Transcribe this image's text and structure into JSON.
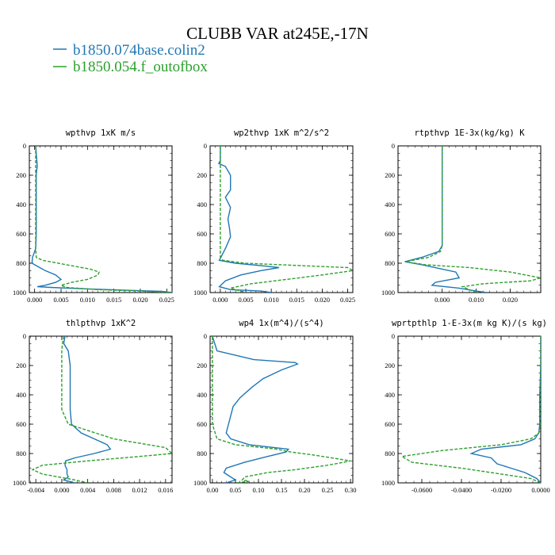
{
  "title": "CLUBB VAR at245E,-17N",
  "legend": [
    {
      "label": "b1850.074base.colin2",
      "color": "#1f77b4",
      "dash": "solid"
    },
    {
      "label": "b1850.054.f_outofbox",
      "color": "#2ca02c",
      "dash": "dashed"
    }
  ],
  "chart_data": [
    {
      "type": "line",
      "title": "wpthvp  1xK m/s",
      "xlim": [
        -0.001,
        0.026
      ],
      "ylim": [
        1000,
        0
      ],
      "xticks": [
        "0.000",
        "0.005",
        "0.010",
        "0.015",
        "0.020",
        "0.025"
      ],
      "xtick_values": [
        0,
        0.005,
        0.01,
        0.015,
        0.02,
        0.025
      ],
      "yticks": [
        "0",
        "200",
        "400",
        "600",
        "800",
        "1000"
      ],
      "ytick_values": [
        0,
        200,
        400,
        600,
        800,
        1000
      ],
      "series": [
        {
          "name": "b1850.074base.colin2",
          "x": [
            0.0002,
            0.0003,
            0.0005,
            0.0004,
            0.0003,
            0.0003,
            0.0003,
            0.0003,
            0.0003,
            0.0002,
            -0.0004,
            -0.0005,
            0.0005,
            0.002,
            0.004,
            0.005,
            0.004,
            0.002,
            0.0005,
            0.003,
            0.01,
            0.018,
            0.024,
            0.026
          ],
          "y": [
            0,
            50,
            140,
            165,
            200,
            300,
            400,
            500,
            600,
            700,
            760,
            800,
            820,
            850,
            880,
            910,
            930,
            950,
            960,
            965,
            975,
            985,
            992,
            1000
          ]
        },
        {
          "name": "b1850.054.f_outofbox",
          "x": [
            0.0002,
            0.0002,
            0.0002,
            0.0002,
            0.0002,
            0.0002,
            0.0002,
            0.0002,
            0.0003,
            0.0015,
            0.006,
            0.0105,
            0.0122,
            0.012,
            0.01,
            0.007,
            0.005,
            0.006,
            0.012,
            0.02,
            0.026
          ],
          "y": [
            0,
            100,
            200,
            300,
            400,
            500,
            600,
            700,
            760,
            780,
            810,
            840,
            860,
            880,
            910,
            930,
            950,
            965,
            980,
            990,
            1000
          ]
        }
      ]
    },
    {
      "type": "line",
      "title": "wp2thvp  1xK m^2/s^2",
      "xlim": [
        -0.002,
        0.026
      ],
      "ylim": [
        1000,
        0
      ],
      "xticks": [
        "0.000",
        "0.005",
        "0.010",
        "0.015",
        "0.020",
        "0.025"
      ],
      "xtick_values": [
        0,
        0.005,
        0.01,
        0.015,
        0.02,
        0.025
      ],
      "yticks": [
        "0",
        "200",
        "400",
        "600",
        "800",
        "1000"
      ],
      "ytick_values": [
        0,
        200,
        400,
        600,
        800,
        1000
      ],
      "series": [
        {
          "name": "b1850.074base.colin2",
          "x": [
            0,
            0,
            -0.0003,
            0.001,
            0.002,
            0.002,
            0.001,
            0.002,
            0.0015,
            0.0018,
            0.002,
            0.001,
            -0.0002,
            0.003,
            0.009,
            0.0115,
            0.008,
            0.004,
            0.001,
            -0.0002,
            0.002,
            0.008,
            0.01
          ],
          "y": [
            0,
            100,
            120,
            140,
            200,
            300,
            350,
            420,
            500,
            560,
            620,
            700,
            780,
            800,
            820,
            830,
            850,
            880,
            920,
            960,
            980,
            990,
            1000
          ]
        },
        {
          "name": "b1850.054.f_outofbox",
          "x": [
            0,
            0,
            0,
            0,
            0,
            0,
            0,
            0,
            0,
            0.0005,
            0.005,
            0.015,
            0.025,
            0.026,
            0.02,
            0.013,
            0.006,
            0.002,
            0.005
          ],
          "y": [
            0,
            100,
            200,
            300,
            400,
            500,
            600,
            700,
            760,
            780,
            800,
            815,
            830,
            850,
            880,
            910,
            940,
            970,
            1000
          ]
        }
      ]
    },
    {
      "type": "line",
      "title": "rtpthvp  1E-3x(kg/kg) K",
      "xlim": [
        -0.013,
        0.029
      ],
      "ylim": [
        1000,
        0
      ],
      "xticks": [
        "0.000",
        "0.010",
        "0.020"
      ],
      "xtick_values": [
        0,
        0.01,
        0.02
      ],
      "yticks": [
        "0",
        "200",
        "400",
        "600",
        "800",
        "1000"
      ],
      "ytick_values": [
        0,
        200,
        400,
        600,
        800,
        1000
      ],
      "series": [
        {
          "name": "b1850.074base.colin2",
          "x": [
            0,
            0,
            0,
            0,
            0,
            0,
            -0.001,
            -0.006,
            -0.011,
            -0.006,
            0.004,
            0.005,
            -0.002,
            -0.003,
            0.005,
            0.01,
            0.013
          ],
          "y": [
            0,
            200,
            400,
            600,
            650,
            680,
            720,
            760,
            790,
            810,
            860,
            900,
            930,
            950,
            970,
            990,
            1000
          ]
        },
        {
          "name": "b1850.054.f_outofbox",
          "x": [
            0,
            0,
            0,
            0,
            0,
            0,
            -0.0005,
            -0.004,
            -0.011,
            -0.005,
            0.008,
            0.02,
            0.029,
            0.026,
            0.012,
            0.006,
            0.01
          ],
          "y": [
            0,
            200,
            400,
            600,
            650,
            680,
            720,
            760,
            790,
            810,
            830,
            860,
            900,
            920,
            940,
            960,
            1000
          ]
        }
      ]
    },
    {
      "type": "line",
      "title": "thlpthvp  1xK^2",
      "xlim": [
        -0.005,
        0.017
      ],
      "ylim": [
        1000,
        0
      ],
      "xticks": [
        "-0.004",
        "0.000",
        "0.004",
        "0.008",
        "0.012",
        "0.016"
      ],
      "xtick_values": [
        -0.004,
        0,
        0.004,
        0.008,
        0.012,
        0.016
      ],
      "yticks": [
        "0",
        "200",
        "400",
        "600",
        "800",
        "1000"
      ],
      "ytick_values": [
        0,
        200,
        400,
        600,
        800,
        1000
      ],
      "series": [
        {
          "name": "b1850.074base.colin2",
          "x": [
            0.0005,
            0.0003,
            0.001,
            0.0013,
            0.0013,
            0.0013,
            0.0013,
            0.0015,
            0.003,
            0.007,
            0.0075,
            0.005,
            0.002,
            0.0006,
            0.0005,
            0.0008,
            0.0008,
            0.001,
            0.0003,
            0.002
          ],
          "y": [
            0,
            50,
            100,
            200,
            300,
            400,
            500,
            600,
            660,
            740,
            770,
            800,
            830,
            850,
            880,
            910,
            940,
            960,
            980,
            1000
          ]
        },
        {
          "name": "b1850.054.f_outofbox",
          "x": [
            0.0003,
            0.0001,
            0,
            0,
            0,
            0,
            0,
            0.001,
            0.008,
            0.016,
            0.017,
            0.012,
            0.004,
            -0.003,
            -0.0045,
            -0.003,
            0.002,
            0.004
          ],
          "y": [
            0,
            50,
            100,
            200,
            300,
            400,
            500,
            600,
            700,
            760,
            800,
            820,
            850,
            880,
            910,
            940,
            980,
            1000
          ]
        }
      ]
    },
    {
      "type": "line",
      "title": "wp4  1x(m^4)/(s^4)",
      "xlim": [
        -0.005,
        0.305
      ],
      "ylim": [
        1000,
        0
      ],
      "xticks": [
        "0.00",
        "0.05",
        "0.10",
        "0.15",
        "0.20",
        "0.25",
        "0.30"
      ],
      "xtick_values": [
        0,
        0.05,
        0.1,
        0.15,
        0.2,
        0.25,
        0.3
      ],
      "yticks": [
        "0",
        "200",
        "400",
        "600",
        "800",
        "1000"
      ],
      "ytick_values": [
        0,
        200,
        400,
        600,
        800,
        1000
      ],
      "series": [
        {
          "name": "b1850.074base.colin2",
          "x": [
            0,
            0.01,
            0.09,
            0.18,
            0.185,
            0.15,
            0.11,
            0.085,
            0.06,
            0.045,
            0.04,
            0.035,
            0.03,
            0.04,
            0.08,
            0.165,
            0.16,
            0.12,
            0.07,
            0.03,
            0.025,
            0.04,
            0.05,
            0.03
          ],
          "y": [
            0,
            100,
            160,
            180,
            190,
            230,
            290,
            350,
            420,
            480,
            540,
            600,
            660,
            700,
            740,
            770,
            790,
            820,
            860,
            900,
            930,
            960,
            980,
            1000
          ]
        },
        {
          "name": "b1850.054.f_outofbox",
          "x": [
            0,
            0,
            0,
            0,
            0,
            0,
            0,
            0.01,
            0.05,
            0.14,
            0.17,
            0.22,
            0.3,
            0.25,
            0.18,
            0.12,
            0.07,
            0.065,
            0.08,
            0.05
          ],
          "y": [
            0,
            100,
            200,
            300,
            400,
            500,
            600,
            700,
            740,
            770,
            790,
            810,
            850,
            880,
            910,
            930,
            960,
            980,
            990,
            1000
          ]
        }
      ]
    },
    {
      "type": "line",
      "title": "wprtpthlp  1-E-3x(m kg K)/(s kg)",
      "xlim": [
        -0.072,
        0
      ],
      "ylim": [
        1000,
        0
      ],
      "xticks": [
        "-0.0600",
        "-0.0400",
        "-0.0200",
        "0.0000"
      ],
      "xtick_values": [
        -0.06,
        -0.04,
        -0.02,
        0
      ],
      "yticks": [
        "0",
        "200",
        "400",
        "600",
        "800",
        "1000"
      ],
      "ytick_values": [
        0,
        200,
        400,
        600,
        800,
        1000
      ],
      "series": [
        {
          "name": "b1850.074base.colin2",
          "x": [
            0,
            0,
            -0.0005,
            -0.0005,
            -0.0005,
            -0.001,
            -0.003,
            -0.01,
            -0.03,
            -0.035,
            -0.025,
            -0.022,
            -0.015,
            -0.008,
            -0.002,
            0
          ],
          "y": [
            0,
            200,
            400,
            500,
            600,
            660,
            700,
            740,
            770,
            800,
            830,
            870,
            900,
            930,
            970,
            1000
          ]
        },
        {
          "name": "b1850.054.f_outofbox",
          "x": [
            0,
            0,
            0,
            0,
            -0.001,
            -0.005,
            -0.02,
            -0.05,
            -0.07,
            -0.065,
            -0.04,
            -0.02,
            -0.005,
            0
          ],
          "y": [
            0,
            200,
            400,
            600,
            660,
            700,
            740,
            780,
            820,
            860,
            900,
            940,
            970,
            1000
          ]
        }
      ]
    }
  ]
}
